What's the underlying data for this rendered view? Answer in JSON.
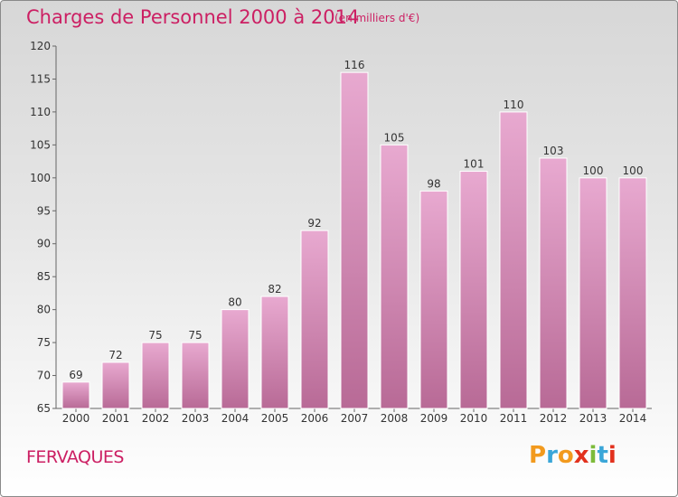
{
  "header": {
    "title": "Charges de Personnel 2000 à 2014",
    "subtitle": "(en milliers d'€)"
  },
  "commune": "FERVAQUES",
  "logo": {
    "text": "Proxiti",
    "colors": [
      "#f29a1e",
      "#3aa6d8",
      "#f29a1e",
      "#e2311d",
      "#7dbb3a",
      "#3aa6d8",
      "#e2311d"
    ]
  },
  "colors": {
    "accent": "#cc1f63",
    "bar_top": "#e8a9d0",
    "bar_bottom": "#b86a96",
    "axis": "#666666"
  },
  "chart_data": {
    "type": "bar",
    "categories": [
      "2000",
      "2001",
      "2002",
      "2003",
      "2004",
      "2005",
      "2006",
      "2007",
      "2008",
      "2009",
      "2010",
      "2011",
      "2012",
      "2013",
      "2014"
    ],
    "values": [
      69,
      72,
      75,
      75,
      80,
      82,
      92,
      116,
      105,
      98,
      101,
      110,
      103,
      100,
      100
    ],
    "title": "Charges de Personnel 2000 à 2014",
    "subtitle": "(en milliers d'€)",
    "xlabel": "",
    "ylabel": "",
    "ylim": [
      65,
      120
    ],
    "yticks": [
      65,
      70,
      75,
      80,
      85,
      90,
      95,
      100,
      105,
      110,
      115,
      120
    ],
    "grid": false,
    "legend": "none"
  }
}
